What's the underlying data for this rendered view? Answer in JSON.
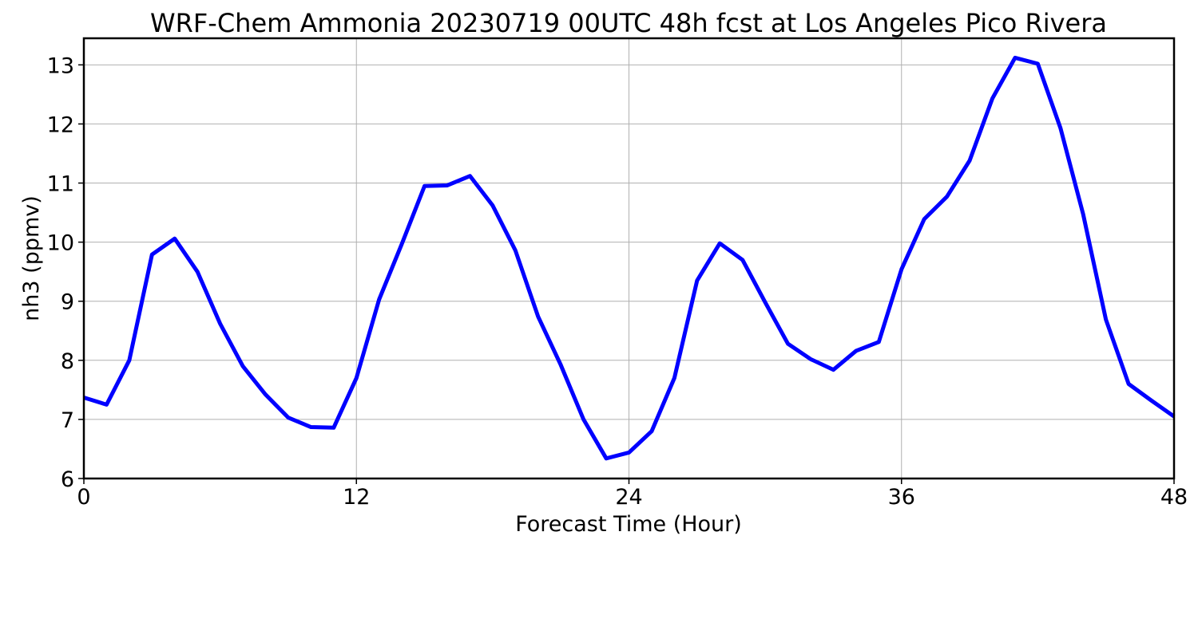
{
  "chart_data": {
    "type": "line",
    "title": "WRF-Chem Ammonia  20230719 00UTC 48h fcst at Los Angeles Pico Rivera",
    "xlabel": "Forecast Time (Hour)",
    "ylabel": "nh3  (ppmv)",
    "xlim": [
      0,
      48
    ],
    "ylim": [
      6,
      13.45
    ],
    "xticks": [
      0,
      12,
      24,
      36,
      48
    ],
    "yticks": [
      6,
      7,
      8,
      9,
      10,
      11,
      12,
      13
    ],
    "grid": true,
    "colors": {
      "series": "#0000ff"
    },
    "x": [
      0,
      1,
      2,
      3,
      4,
      5,
      6,
      7,
      8,
      9,
      10,
      11,
      12,
      13,
      14,
      15,
      16,
      17,
      18,
      19,
      20,
      21,
      22,
      23,
      24,
      25,
      26,
      27,
      28,
      29,
      30,
      31,
      32,
      33,
      34,
      35,
      36,
      37,
      38,
      39,
      40,
      41,
      42,
      43,
      44,
      45,
      46,
      47,
      48
    ],
    "series": [
      {
        "values": [
          7.37,
          7.25,
          8.0,
          9.79,
          10.06,
          9.5,
          8.62,
          7.9,
          7.42,
          7.03,
          6.87,
          6.86,
          7.7,
          9.03,
          9.97,
          10.95,
          10.96,
          11.12,
          10.62,
          9.86,
          8.74,
          7.92,
          7.0,
          6.34,
          6.44,
          6.8,
          7.7,
          9.35,
          9.98,
          9.7,
          8.98,
          8.28,
          8.02,
          7.84,
          8.16,
          8.31,
          9.54,
          10.39,
          10.77,
          11.38,
          12.43,
          13.12,
          13.02,
          11.93,
          10.47,
          8.69,
          7.6,
          7.32,
          7.05
        ]
      }
    ]
  }
}
